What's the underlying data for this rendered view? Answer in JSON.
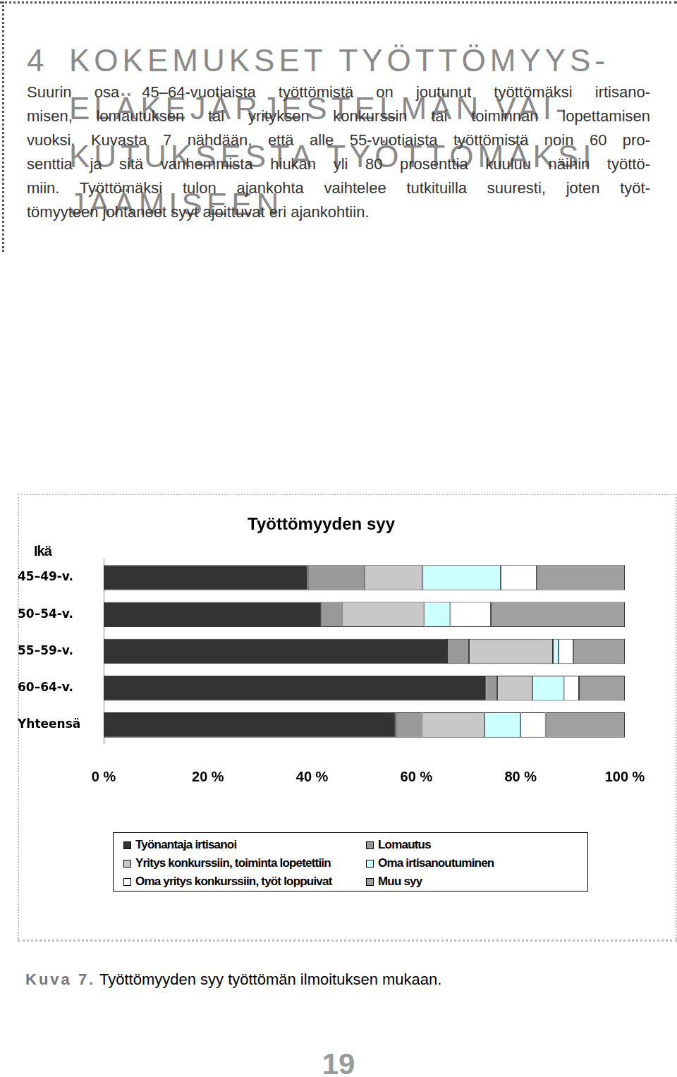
{
  "header": {
    "number": "4",
    "title_lines": [
      "KOKEMUKSET TYÖTTÖMYYS-",
      "ELÄKEJÄRJESTELMÄN VAI-",
      "KUTUKSESTA TYÖTTÖMÄKSI",
      "JÄÄMISEEN"
    ]
  },
  "body": {
    "lines": [
      "Suurin osa 45–64-vuotiaista työttömistä on joutunut työttömäksi irtisano-",
      "misen, lomautuksen tai yrityksen konkurssin tai toiminnan lopettamisen",
      "vuoksi. Kuvasta 7 nähdään, että alle 55-vuotiaista työttömistä noin 60 pro-",
      "senttia ja sitä vanhemmista hiukan yli 80 prosenttia kuuluu näihin työttö-",
      "miin. Työttömäksi tulon ajankohta vaihtelee tutkituilla suuresti, joten työt-",
      "tömyyteen johtaneet syyt ajoittuvat eri ajankohtiin."
    ]
  },
  "chart_data": {
    "type": "bar",
    "title": "Työttömyyden syy",
    "ylabel": "Ikä",
    "orientation": "horizontal",
    "stacked": true,
    "grid": false,
    "legend": "bottom",
    "categories": [
      "45–49-v.",
      "50–54-v.",
      "55–59-v.",
      "60–64-v.",
      "Yhteensä"
    ],
    "series": [
      {
        "name": "Työnantaja irtisanoi",
        "color": "#333333",
        "values": [
          39.2,
          41.7,
          65.9,
          73.4,
          56.0
        ]
      },
      {
        "name": "Lomautus",
        "color": "#999999",
        "values": [
          10.9,
          4.0,
          4.2,
          2.1,
          5.1
        ]
      },
      {
        "name": "Yritys konkurssiin, toiminta lopetettiin",
        "color": "#c8c8c8",
        "values": [
          11.1,
          15.8,
          16.1,
          6.8,
          12.0
        ]
      },
      {
        "name": "Oma irtisanoutuminen",
        "color": "#ccffff",
        "values": [
          15.0,
          5.0,
          1.1,
          6.0,
          6.9
        ]
      },
      {
        "name": "Oma yritys konkurssiin, työt loppuivat",
        "color": "#ffffff",
        "values": [
          6.9,
          7.8,
          2.8,
          2.9,
          4.8
        ]
      },
      {
        "name": "Muu syy",
        "color": "#a0a0a0",
        "values": [
          16.9,
          25.7,
          9.9,
          8.8,
          15.2
        ]
      }
    ],
    "xlim": [
      0,
      100
    ],
    "xticks": [
      {
        "value": 0,
        "label": "0 %"
      },
      {
        "value": 20,
        "label": "20 %"
      },
      {
        "value": 40,
        "label": "40 %"
      },
      {
        "value": 60,
        "label": "60 %"
      },
      {
        "value": 80,
        "label": "80 %"
      },
      {
        "value": 100,
        "label": "100 %"
      }
    ]
  },
  "caption": {
    "label": "Kuva 7.",
    "text": "Työttömyyden syy työttömän ilmoituksen mukaan."
  },
  "page_number": 19
}
